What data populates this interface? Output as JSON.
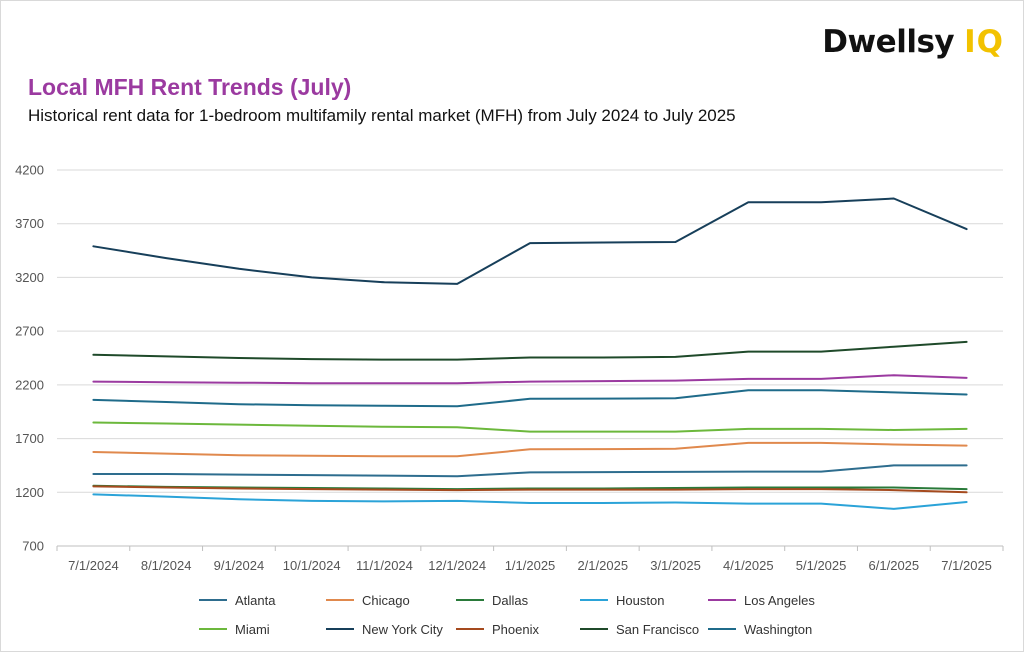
{
  "brand": {
    "word": "Dwellsy",
    "suffix": "IQ",
    "accent": "#f2c200"
  },
  "chart_data": {
    "type": "line",
    "title": "Local MFH Rent Trends (July)",
    "subtitle": "Historical rent data for 1-bedroom multifamily rental market (MFH) from July 2024 to July 2025",
    "x": [
      "7/1/2024",
      "8/1/2024",
      "9/1/2024",
      "10/1/2024",
      "11/1/2024",
      "12/1/2024",
      "1/1/2025",
      "2/1/2025",
      "3/1/2025",
      "4/1/2025",
      "5/1/2025",
      "6/1/2025",
      "7/1/2025"
    ],
    "ylim": [
      700,
      4200
    ],
    "yticks": [
      700,
      1200,
      1700,
      2200,
      2700,
      3200,
      3700,
      4200
    ],
    "grid": true,
    "legend_position": "bottom",
    "series": [
      {
        "name": "Atlanta",
        "color": "#2e6d8e",
        "values": [
          1370,
          1370,
          1365,
          1360,
          1355,
          1350,
          1385,
          1388,
          1390,
          1393,
          1393,
          1450,
          1450
        ]
      },
      {
        "name": "Chicago",
        "color": "#e0894d",
        "values": [
          1575,
          1560,
          1545,
          1540,
          1535,
          1535,
          1600,
          1602,
          1605,
          1660,
          1660,
          1645,
          1635
        ]
      },
      {
        "name": "Dallas",
        "color": "#2a7a3a",
        "values": [
          1260,
          1250,
          1245,
          1240,
          1235,
          1230,
          1235,
          1235,
          1240,
          1245,
          1245,
          1245,
          1230
        ]
      },
      {
        "name": "Houston",
        "color": "#2ba3d8",
        "values": [
          1180,
          1160,
          1135,
          1120,
          1115,
          1120,
          1100,
          1100,
          1105,
          1095,
          1095,
          1045,
          1110
        ]
      },
      {
        "name": "Los Angeles",
        "color": "#9b3aa0",
        "values": [
          2230,
          2225,
          2220,
          2215,
          2215,
          2215,
          2230,
          2235,
          2240,
          2255,
          2255,
          2290,
          2265
        ]
      },
      {
        "name": "Miami",
        "color": "#6cb83c",
        "values": [
          1850,
          1840,
          1830,
          1820,
          1810,
          1805,
          1765,
          1765,
          1765,
          1790,
          1790,
          1780,
          1790
        ]
      },
      {
        "name": "New York City",
        "color": "#173f5a",
        "values": [
          3490,
          3380,
          3280,
          3200,
          3155,
          3140,
          3520,
          3525,
          3530,
          3900,
          3900,
          3935,
          3650
        ]
      },
      {
        "name": "Phoenix",
        "color": "#a54a1e",
        "values": [
          1255,
          1245,
          1235,
          1230,
          1225,
          1220,
          1225,
          1225,
          1225,
          1230,
          1230,
          1220,
          1200
        ]
      },
      {
        "name": "San Francisco",
        "color": "#1f4a2a",
        "values": [
          2480,
          2465,
          2450,
          2440,
          2435,
          2435,
          2455,
          2455,
          2460,
          2510,
          2510,
          2555,
          2600
        ]
      },
      {
        "name": "Washington",
        "color": "#1f6b8a",
        "values": [
          2060,
          2040,
          2020,
          2010,
          2005,
          2000,
          2070,
          2072,
          2075,
          2150,
          2150,
          2130,
          2110
        ]
      }
    ]
  }
}
